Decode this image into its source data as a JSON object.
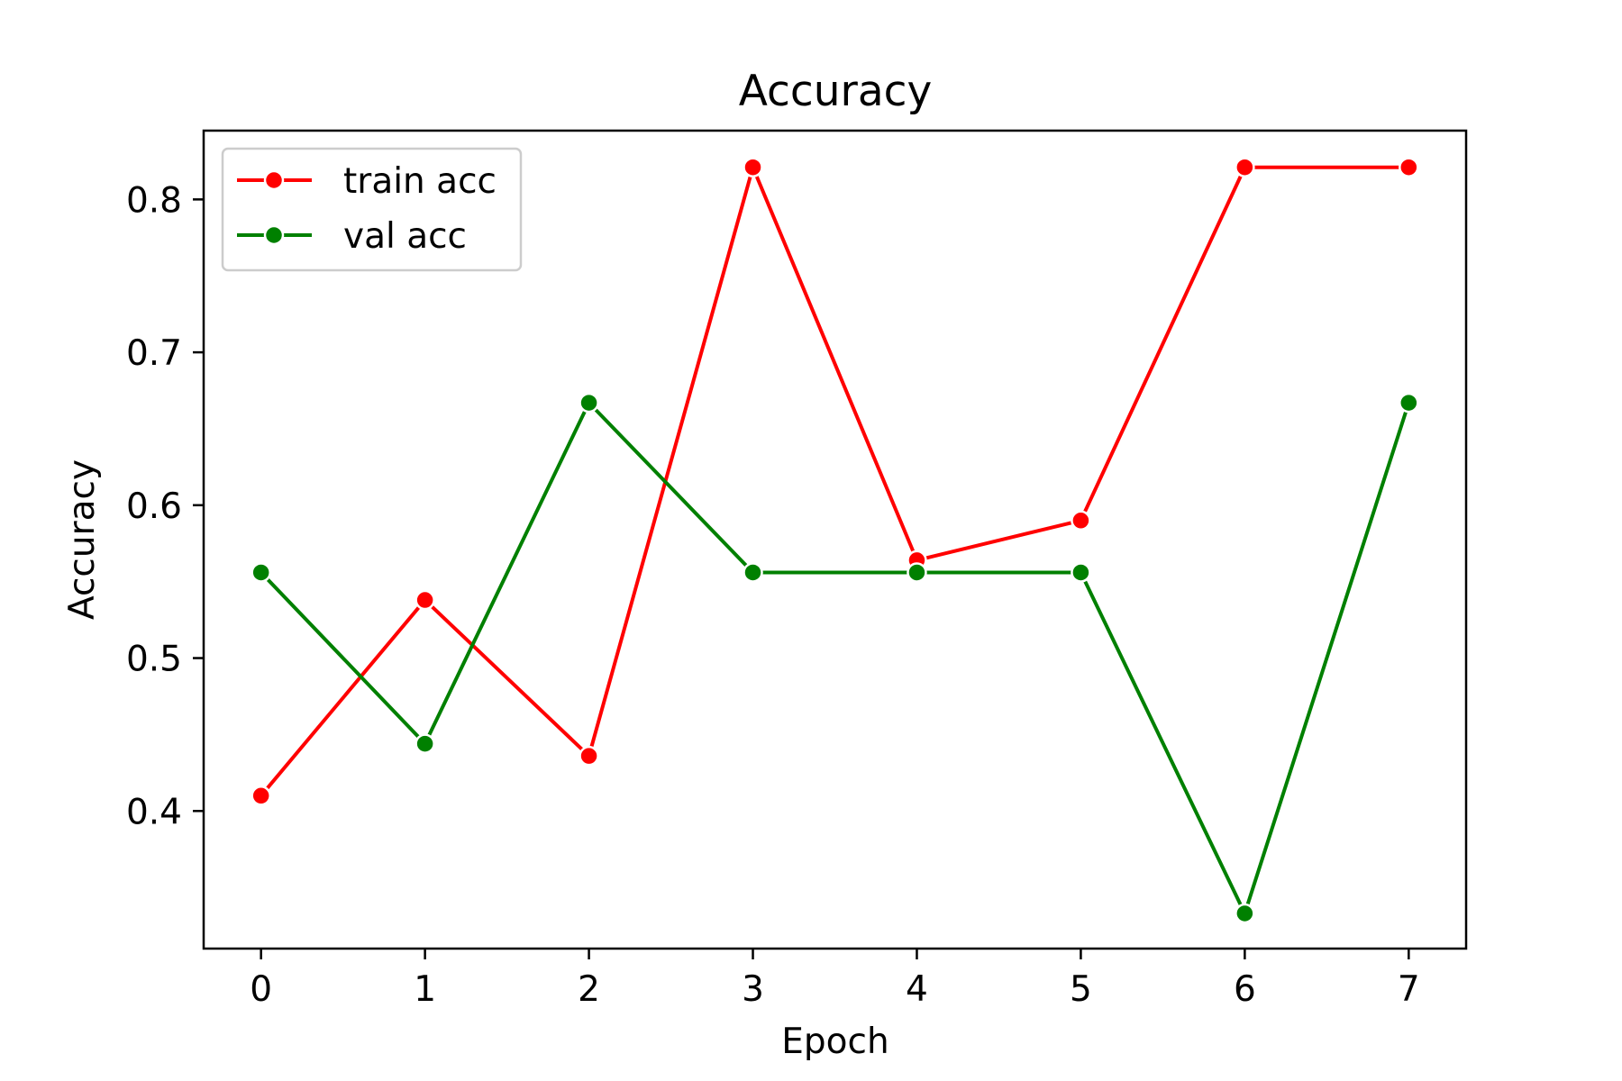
{
  "chart_data": {
    "type": "line",
    "title": "Accuracy",
    "xlabel": "Epoch",
    "ylabel": "Accuracy",
    "x": [
      0,
      1,
      2,
      3,
      4,
      5,
      6,
      7
    ],
    "xticks": [
      "0",
      "1",
      "2",
      "3",
      "4",
      "5",
      "6",
      "7"
    ],
    "yticks": [
      "0.4",
      "0.5",
      "0.6",
      "0.7",
      "0.8"
    ],
    "xlim": [
      -0.35,
      7.35
    ],
    "ylim": [
      0.31,
      0.845
    ],
    "legend_position": "upper-left",
    "grid": false,
    "series": [
      {
        "name": "train acc",
        "color": "#ff0000",
        "marker": "circle",
        "values": [
          0.41,
          0.538,
          0.436,
          0.821,
          0.564,
          0.59,
          0.821,
          0.821
        ]
      },
      {
        "name": "val acc",
        "color": "#008000",
        "marker": "circle",
        "values": [
          0.556,
          0.444,
          0.667,
          0.556,
          0.556,
          0.556,
          0.333,
          0.667
        ]
      }
    ]
  }
}
